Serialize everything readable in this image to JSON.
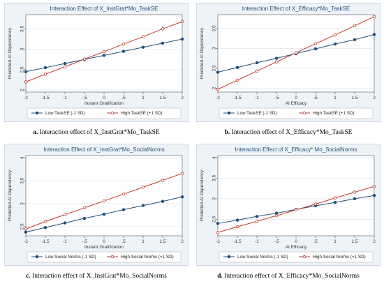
{
  "chart_data": [
    {
      "type": "line",
      "title": "Interaction Effect of X_InstGrat*Mo_TaskSE",
      "xlabel": "Instant Gratification",
      "ylabel": "Predicted AI Dependency",
      "x": [
        -2,
        -1.5,
        -1,
        -0.5,
        0,
        0.5,
        1,
        1.5,
        2
      ],
      "xticks": [
        "-2",
        "-1.5",
        "-1",
        "-.5",
        "0",
        ".5",
        "1",
        "1.5",
        "2"
      ],
      "yticks": [
        "2",
        "2.5",
        "3",
        "3.5"
      ],
      "ylim": [
        1.95,
        3.85
      ],
      "grid": true,
      "legend": "bottom",
      "series": [
        {
          "name": "Low TaskSE (-1 SD)",
          "color": "#1f4e79",
          "marker": "circle-filled",
          "values": [
            2.45,
            2.55,
            2.65,
            2.75,
            2.85,
            2.95,
            3.05,
            3.15,
            3.25
          ]
        },
        {
          "name": "High TaskSE (+1 SD)",
          "color": "#c0392b",
          "marker": "circle-open",
          "values": [
            2.2,
            2.39,
            2.57,
            2.76,
            2.94,
            3.13,
            3.31,
            3.5,
            3.68
          ]
        }
      ],
      "caption_prefix": "a.",
      "caption_text": "Interaction effect of X_InstGrat*Mo_TaskSE"
    },
    {
      "type": "line",
      "title": "Interaction Effect of X_Efficacy*Mo_TaskSE",
      "xlabel": "AI Efficacy",
      "ylabel": "Predicted AI Dependency",
      "x": [
        -2,
        -1.5,
        -1,
        -0.5,
        0,
        0.5,
        1,
        1.5,
        2
      ],
      "xticks": [
        "-2",
        "-1.5",
        "-1",
        "-.5",
        "0",
        ".5",
        "1",
        "1.5",
        "2"
      ],
      "yticks": [
        "2",
        "2.5",
        "3",
        "3.5"
      ],
      "ylim": [
        1.9,
        3.85
      ],
      "grid": true,
      "legend": "bottom",
      "series": [
        {
          "name": "Low TaskSE (-1 SD)",
          "color": "#1f4e79",
          "marker": "circle-filled",
          "values": [
            2.4,
            2.52,
            2.64,
            2.75,
            2.87,
            2.99,
            3.11,
            3.22,
            3.35
          ]
        },
        {
          "name": "High TaskSE (+1 SD)",
          "color": "#c0392b",
          "marker": "circle-open",
          "values": [
            1.97,
            2.2,
            2.43,
            2.66,
            2.89,
            3.12,
            3.34,
            3.57,
            3.8
          ]
        }
      ],
      "caption_prefix": "b.",
      "caption_text": "Interaction effect of X_Efficacy*Mo_TaskSE"
    },
    {
      "type": "line",
      "title": "Interaction Effect of X_InstGrat*Mo_SocialNorms",
      "xlabel": "Instant Gratification",
      "ylabel": "Predicted AI Dependency",
      "x": [
        -2,
        -1.5,
        -1,
        -0.5,
        0,
        0.5,
        1,
        1.5,
        2
      ],
      "xticks": [
        "-2",
        "-1.5",
        "-1",
        "-.5",
        "0",
        ".5",
        "1",
        "1.5",
        "2"
      ],
      "yticks": [
        "2.5",
        "3",
        "3.5",
        "4"
      ],
      "ylim": [
        2.3,
        4.05
      ],
      "grid": true,
      "legend": "bottom",
      "series": [
        {
          "name": "Low Social Norms (-1 SD)",
          "color": "#1f4e79",
          "marker": "circle-filled",
          "values": [
            2.38,
            2.48,
            2.58,
            2.68,
            2.77,
            2.87,
            2.96,
            3.05,
            3.15
          ]
        },
        {
          "name": "High Social Norms (+1 SD)",
          "color": "#c0392b",
          "marker": "circle-open",
          "values": [
            2.45,
            2.61,
            2.76,
            2.91,
            3.06,
            3.21,
            3.36,
            3.51,
            3.66
          ]
        }
      ],
      "caption_prefix": "c.",
      "caption_text": "Interaction effect of X_InstGrat*Mo_SocialNorms"
    },
    {
      "type": "line",
      "title": "Interaction Effect of X_Efficacy* Mo_SocialNorms",
      "xlabel": "AI Efficacy",
      "ylabel": "Predicted AI Dependency",
      "x": [
        -2,
        -1.5,
        -1,
        -0.5,
        0,
        0.5,
        1,
        1.5,
        2
      ],
      "xticks": [
        "-2",
        "-1.5",
        "-1",
        "-.5",
        "0",
        ".5",
        "1",
        "1.5",
        "2"
      ],
      "yticks": [
        "2.5",
        "3",
        "3.5",
        "4"
      ],
      "ylim": [
        2.1,
        4.05
      ],
      "grid": true,
      "legend": "bottom",
      "series": [
        {
          "name": "Low Social Norms (-1 SD)",
          "color": "#1f4e79",
          "marker": "circle-filled",
          "values": [
            2.4,
            2.48,
            2.57,
            2.65,
            2.74,
            2.83,
            2.91,
            3.0,
            3.08
          ]
        },
        {
          "name": "High Social Norms (+1 SD)",
          "color": "#c0392b",
          "marker": "circle-open",
          "values": [
            2.18,
            2.32,
            2.45,
            2.59,
            2.73,
            2.87,
            3.02,
            3.16,
            3.3
          ]
        }
      ],
      "caption_prefix": "d.",
      "caption_text": "Interaction effect of X_Efficacy*Mo_SocialNorms"
    }
  ]
}
